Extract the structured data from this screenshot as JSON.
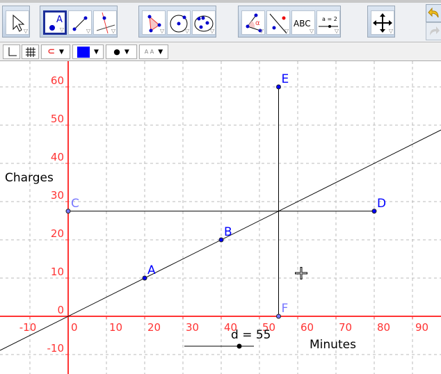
{
  "toolbar": {
    "tools": [
      {
        "name": "move-tool",
        "icon": "arrow-cursor-icon"
      },
      {
        "name": "point-tool",
        "icon": "point-icon",
        "label": "A",
        "selected": true
      },
      {
        "name": "line-tool",
        "icon": "line-through-points-icon"
      },
      {
        "name": "perpendicular-tool",
        "icon": "perpendicular-line-icon"
      },
      {
        "name": "polygon-tool",
        "icon": "polygon-icon"
      },
      {
        "name": "circle-tool",
        "icon": "circle-center-point-icon"
      },
      {
        "name": "conic-tool",
        "icon": "conic-five-points-icon"
      },
      {
        "name": "angle-tool",
        "icon": "angle-icon",
        "label": "α"
      },
      {
        "name": "reflect-tool",
        "icon": "reflect-about-line-icon"
      },
      {
        "name": "text-tool",
        "icon": "text-icon",
        "label": "ABC"
      },
      {
        "name": "slider-tool",
        "icon": "slider-icon",
        "label": "a = 2"
      },
      {
        "name": "move-view-tool",
        "icon": "move-graphics-view-icon"
      }
    ],
    "undo_icon": "undo-icon",
    "redo_icon": "redo-icon"
  },
  "stylebar": {
    "color": "#0000ff",
    "text_size_label": "A A"
  },
  "graph": {
    "x_ticks": [
      "-10",
      "0",
      "10",
      "20",
      "30",
      "40",
      "50",
      "60",
      "70",
      "80",
      "90"
    ],
    "y_ticks": [
      "-10",
      "0",
      "10",
      "20",
      "30",
      "40",
      "50",
      "60"
    ],
    "x_label": "Minutes",
    "y_label": "Charges",
    "axis_color": "#ff3333",
    "points": [
      {
        "name": "A",
        "x": 20,
        "y": 10,
        "color": "#0000ff"
      },
      {
        "name": "B",
        "x": 40,
        "y": 20,
        "color": "#0000ff"
      },
      {
        "name": "C",
        "x": 0,
        "y": 27.5,
        "color": "#7777ff"
      },
      {
        "name": "D",
        "x": 80,
        "y": 27.5,
        "color": "#0000ff"
      },
      {
        "name": "E",
        "x": 55,
        "y": 60,
        "color": "#0000ff"
      },
      {
        "name": "F",
        "x": 55,
        "y": 0,
        "color": "#7777ff"
      }
    ],
    "line": "y = 0.5x",
    "slider": {
      "label": "d = 55",
      "value": 55,
      "fraction": 0.79
    }
  }
}
